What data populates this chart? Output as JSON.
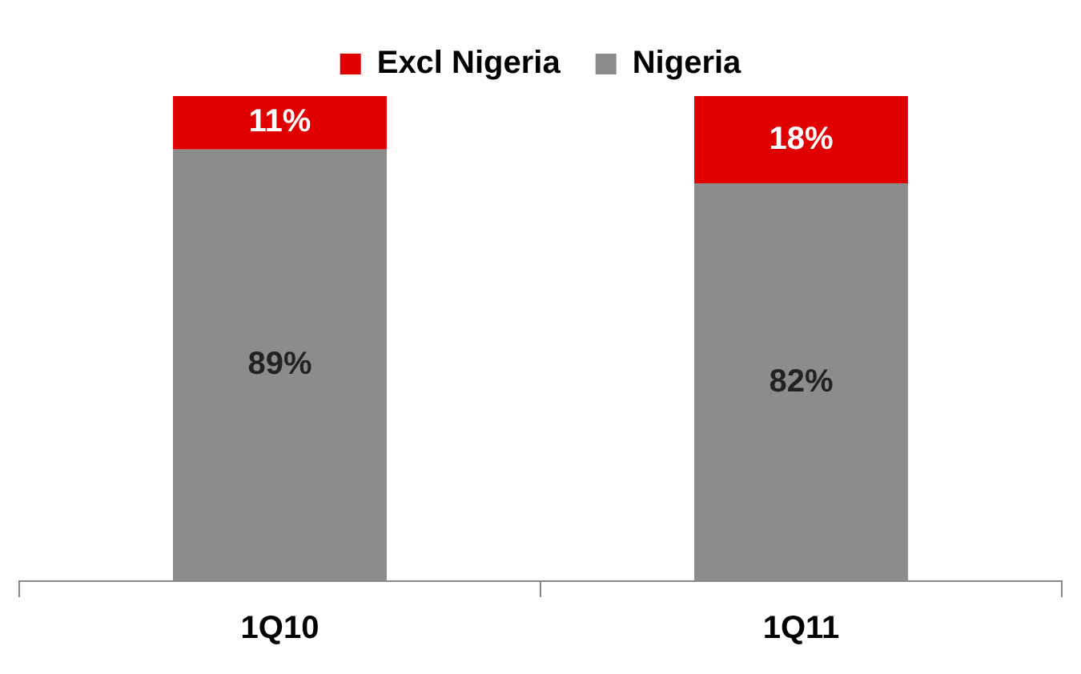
{
  "chart_data": {
    "type": "bar",
    "stacked": true,
    "legend": "top",
    "categories": [
      "1Q10",
      "1Q11"
    ],
    "series": [
      {
        "name": "Nigeria",
        "color": "#8c8c8c",
        "values": [
          89,
          82
        ],
        "value_labels": [
          "89%",
          "82%"
        ]
      },
      {
        "name": "Excl Nigeria",
        "color": "#e00000",
        "values": [
          11,
          18
        ],
        "value_labels": [
          "11%",
          "18%"
        ]
      }
    ]
  }
}
